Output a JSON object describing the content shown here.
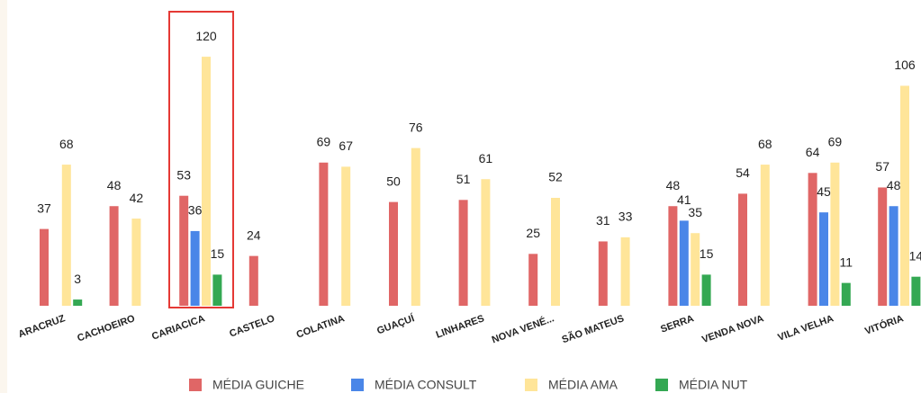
{
  "chart_data": {
    "type": "bar",
    "categories": [
      "ARACRUZ",
      "CACHOEIRO",
      "CARIACICA",
      "CASTELO",
      "COLATINA",
      "GUAÇUÍ",
      "LINHARES",
      "NOVA VENÉ...",
      "SÃO MATEUS",
      "SERRA",
      "VENDA NOVA",
      "VILA VELHA",
      "VITÓRIA"
    ],
    "series": [
      {
        "name": "MÉDIA GUICHE",
        "color": "#e06666",
        "values": [
          37,
          48,
          53,
          24,
          69,
          50,
          51,
          25,
          31,
          48,
          54,
          64,
          57
        ]
      },
      {
        "name": "MÉDIA CONSULT",
        "color": "#4a86e8",
        "values": [
          null,
          null,
          36,
          null,
          null,
          null,
          null,
          null,
          null,
          41,
          null,
          45,
          48
        ]
      },
      {
        "name": "MÉDIA AMA",
        "color": "#ffe599",
        "values": [
          68,
          42,
          120,
          null,
          67,
          76,
          61,
          52,
          33,
          35,
          68,
          69,
          106
        ]
      },
      {
        "name": "MÉDIA NUT",
        "color": "#34a853",
        "values": [
          3,
          null,
          15,
          null,
          null,
          null,
          null,
          null,
          null,
          15,
          null,
          11,
          14
        ]
      }
    ],
    "ylim": [
      0,
      130
    ]
  }
}
